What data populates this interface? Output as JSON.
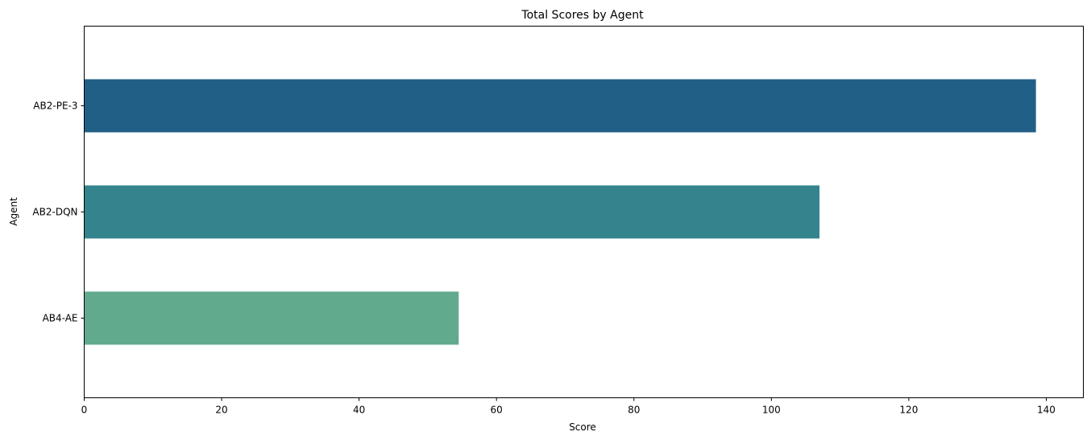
{
  "chart_data": {
    "type": "bar",
    "orientation": "horizontal",
    "title": "Total Scores by Agent",
    "xlabel": "Score",
    "ylabel": "Agent",
    "categories": [
      "AB2-PE-3",
      "AB2-DQN",
      "AB4-AE"
    ],
    "values": [
      138.5,
      107,
      54.5
    ],
    "colors": [
      "#215f87",
      "#33848c",
      "#62aa8d"
    ],
    "xlim": [
      0,
      145.4
    ],
    "xticks": [
      0,
      20,
      40,
      60,
      80,
      100,
      120,
      140
    ],
    "grid": false,
    "legend": "none"
  }
}
